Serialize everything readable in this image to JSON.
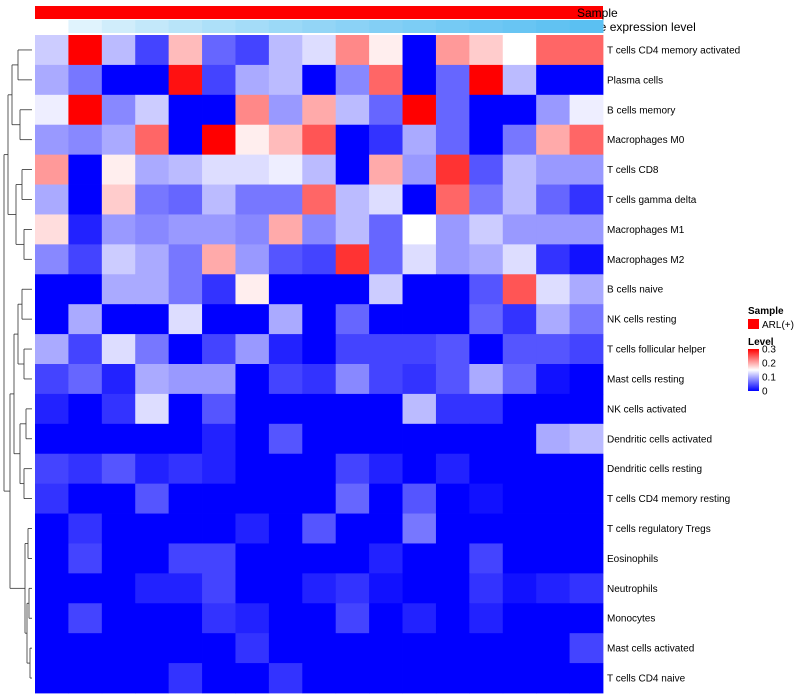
{
  "chart_data": {
    "type": "heatmap",
    "annotations": {
      "sample_label": "Sample",
      "gene_label": "Gene expression level",
      "sample_color": "#ff0000",
      "gene_gradient": [
        "#ffffff",
        "#5bc0f2"
      ]
    },
    "rows": [
      "T cells CD4 memory activated",
      "Plasma cells",
      "B cells memory",
      "Macrophages M0",
      "T cells CD8",
      "T cells gamma delta",
      "Macrophages M1",
      "Macrophages M2",
      "B cells naive",
      "NK cells resting",
      "T cells follicular helper",
      "Mast cells resting",
      "NK cells activated",
      "Dendritic cells activated",
      "Dendritic cells resting",
      "T cells CD4 memory resting",
      "T cells regulatory  Tregs",
      "Eosinophils",
      "Neutrophils",
      "Monocytes",
      "Mast cells activated",
      "T cells CD4 naive"
    ],
    "n_columns": 17,
    "values": [
      [
        0.12,
        0.3,
        0.11,
        0.04,
        0.19,
        0.06,
        0.04,
        0.11,
        0.13,
        0.22,
        0.16,
        0.0,
        0.21,
        0.18,
        0.15,
        0.24,
        0.24
      ],
      [
        0.1,
        0.07,
        0.0,
        0.0,
        0.29,
        0.04,
        0.1,
        0.11,
        0.0,
        0.08,
        0.24,
        0.0,
        0.06,
        0.3,
        0.11,
        0.0,
        0.0
      ],
      [
        0.14,
        0.3,
        0.08,
        0.12,
        0.0,
        0.0,
        0.22,
        0.09,
        0.2,
        0.11,
        0.06,
        0.3,
        0.06,
        0.0,
        0.0,
        0.09,
        0.14
      ],
      [
        0.09,
        0.08,
        0.1,
        0.24,
        0.0,
        0.3,
        0.16,
        0.19,
        0.25,
        0.0,
        0.03,
        0.1,
        0.06,
        0.0,
        0.07,
        0.2,
        0.24
      ],
      [
        0.21,
        0.0,
        0.16,
        0.1,
        0.11,
        0.13,
        0.13,
        0.14,
        0.11,
        0.0,
        0.2,
        0.09,
        0.27,
        0.05,
        0.11,
        0.09,
        0.09
      ],
      [
        0.1,
        0.0,
        0.18,
        0.07,
        0.06,
        0.11,
        0.07,
        0.07,
        0.24,
        0.11,
        0.13,
        0.0,
        0.24,
        0.07,
        0.11,
        0.06,
        0.03
      ],
      [
        0.17,
        0.02,
        0.09,
        0.08,
        0.09,
        0.09,
        0.08,
        0.2,
        0.08,
        0.11,
        0.06,
        0.15,
        0.09,
        0.12,
        0.09,
        0.09,
        0.09
      ],
      [
        0.08,
        0.04,
        0.12,
        0.1,
        0.07,
        0.2,
        0.09,
        0.05,
        0.04,
        0.27,
        0.06,
        0.13,
        0.09,
        0.1,
        0.13,
        0.03,
        0.01
      ],
      [
        0.0,
        0.0,
        0.1,
        0.1,
        0.07,
        0.03,
        0.16,
        0.0,
        0.0,
        0.0,
        0.12,
        0.0,
        0.0,
        0.05,
        0.25,
        0.13,
        0.1
      ],
      [
        0.0,
        0.1,
        0.0,
        0.0,
        0.13,
        0.0,
        0.0,
        0.1,
        0.0,
        0.06,
        0.0,
        0.0,
        0.0,
        0.06,
        0.03,
        0.1,
        0.07
      ],
      [
        0.1,
        0.04,
        0.13,
        0.07,
        0.0,
        0.04,
        0.09,
        0.02,
        0.0,
        0.04,
        0.04,
        0.04,
        0.05,
        0.0,
        0.05,
        0.05,
        0.04
      ],
      [
        0.04,
        0.06,
        0.02,
        0.1,
        0.09,
        0.09,
        0.0,
        0.04,
        0.03,
        0.08,
        0.04,
        0.03,
        0.05,
        0.1,
        0.06,
        0.01,
        0.0
      ],
      [
        0.02,
        0.0,
        0.03,
        0.13,
        0.0,
        0.05,
        0.0,
        0.0,
        0.0,
        0.0,
        0.0,
        0.11,
        0.03,
        0.03,
        0.0,
        0.0,
        0.0
      ],
      [
        0.0,
        0.0,
        0.0,
        0.0,
        0.0,
        0.02,
        0.0,
        0.05,
        0.0,
        0.0,
        0.0,
        0.0,
        0.0,
        0.0,
        0.0,
        0.1,
        0.11
      ],
      [
        0.04,
        0.03,
        0.05,
        0.02,
        0.03,
        0.02,
        0.0,
        0.0,
        0.0,
        0.04,
        0.02,
        0.0,
        0.02,
        0.0,
        0.0,
        0.0,
        0.0
      ],
      [
        0.03,
        0.0,
        0.0,
        0.05,
        0.0,
        0.0,
        0.0,
        0.0,
        0.0,
        0.06,
        0.0,
        0.05,
        0.0,
        0.01,
        0.0,
        0.0,
        0.0
      ],
      [
        0.0,
        0.03,
        0.0,
        0.0,
        0.0,
        0.0,
        0.02,
        0.0,
        0.05,
        0.0,
        0.0,
        0.07,
        0.0,
        0.0,
        0.0,
        0.0,
        0.0
      ],
      [
        0.0,
        0.04,
        0.0,
        0.0,
        0.04,
        0.04,
        0.0,
        0.0,
        0.0,
        0.0,
        0.02,
        0.0,
        0.0,
        0.04,
        0.0,
        0.0,
        0.0
      ],
      [
        0.0,
        0.0,
        0.0,
        0.02,
        0.02,
        0.04,
        0.0,
        0.0,
        0.02,
        0.03,
        0.01,
        0.0,
        0.0,
        0.03,
        0.01,
        0.02,
        0.03
      ],
      [
        0.0,
        0.04,
        0.0,
        0.0,
        0.0,
        0.03,
        0.02,
        0.0,
        0.0,
        0.04,
        0.0,
        0.02,
        0.0,
        0.02,
        0.0,
        0.0,
        0.0
      ],
      [
        0.0,
        0.0,
        0.0,
        0.0,
        0.0,
        0.0,
        0.03,
        0.0,
        0.0,
        0.0,
        0.0,
        0.0,
        0.0,
        0.0,
        0.0,
        0.0,
        0.04
      ],
      [
        0.0,
        0.0,
        0.0,
        0.0,
        0.03,
        0.0,
        0.0,
        0.03,
        0.0,
        0.0,
        0.0,
        0.0,
        0.0,
        0.0,
        0.0,
        0.0,
        0.0
      ]
    ],
    "color_scale": {
      "min": 0,
      "max": 0.3,
      "low": "#0000ff",
      "mid": "#ffffff",
      "mid_value": 0.15,
      "high": "#ff0000"
    },
    "legend": {
      "sample_title": "Sample",
      "sample_entry": "ARL(+)",
      "level_title": "Level",
      "level_ticks": [
        0.3,
        0.2,
        0.1,
        0
      ]
    },
    "dendrogram": "rows"
  }
}
